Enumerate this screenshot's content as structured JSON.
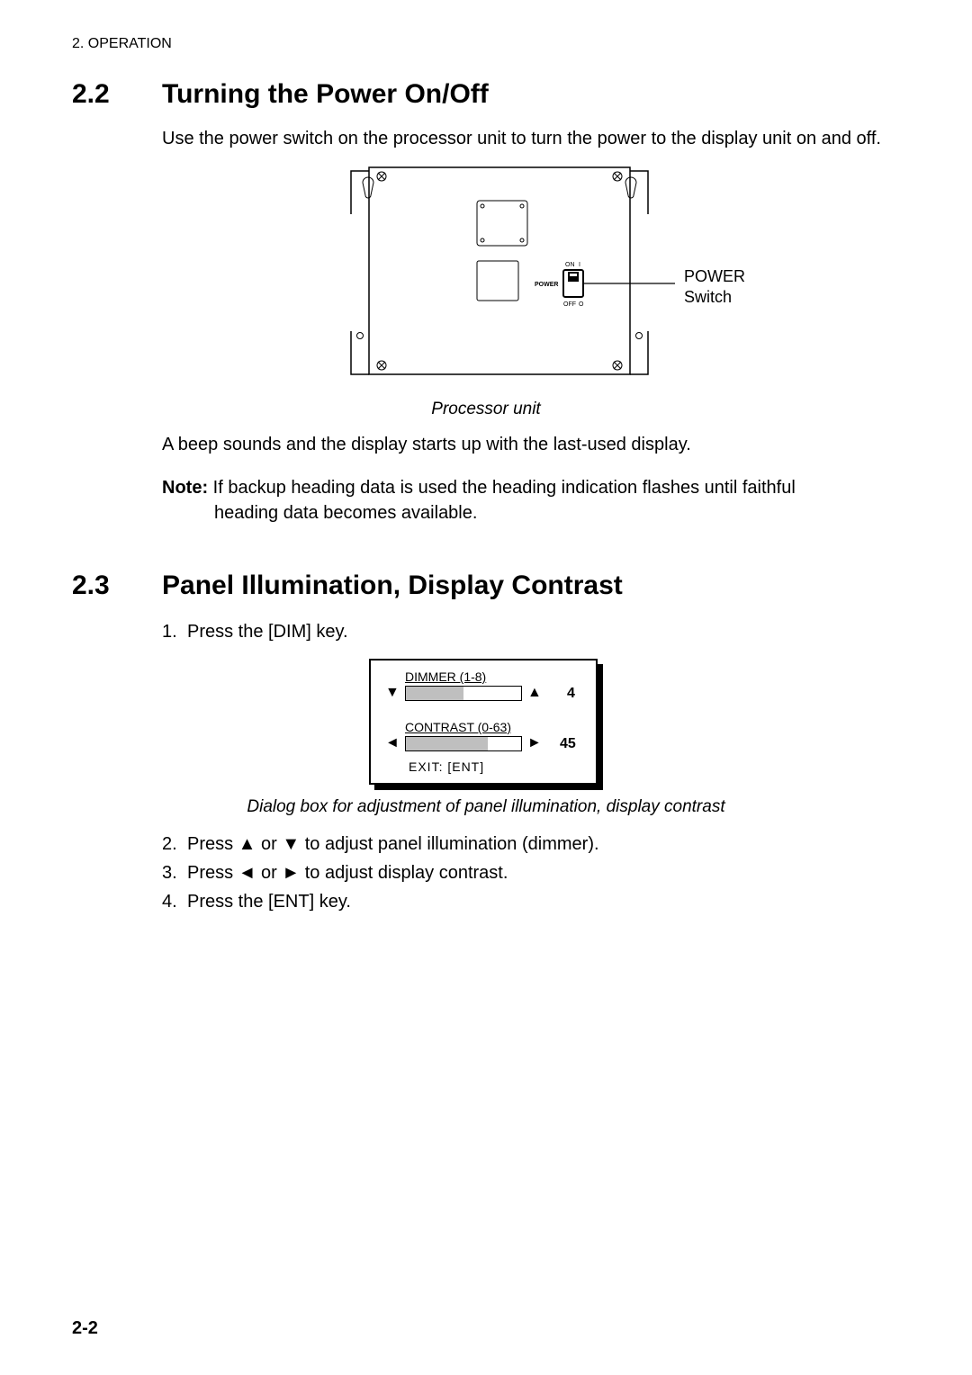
{
  "header": "2. OPERATION",
  "s22": {
    "num": "2.2",
    "title": "Turning the Power On/Off",
    "intro": "Use the power switch on the processor unit to turn the power to the display unit on and off.",
    "pu_label_line1": "POWER",
    "pu_label_line2": "Switch",
    "pu_caption": "Processor unit",
    "pu_switch_on": "ON",
    "pu_switch_on_mark": "I",
    "pu_switch_off": "OFF",
    "pu_switch_off_mark": "O",
    "pu_power_word": "POWER",
    "after": "A beep sounds and the display starts up with the last-used display.",
    "note_label": "Note:",
    "note_line1": "If backup heading data is used the heading indication flashes until faithful",
    "note_line2": "heading data becomes available."
  },
  "s23": {
    "num": "2.3",
    "title": "Panel Illumination, Display Contrast",
    "step1": "Press the [DIM] key.",
    "dimmer_label": "DIMMER   (1-8)",
    "dimmer_value": "4",
    "dimmer_fill_pct": 50,
    "contrast_label": "CONTRAST (0-63)",
    "contrast_value": "45",
    "contrast_fill_pct": 71,
    "exit_label": "EXIT: [ENT]",
    "dlg_caption": "Dialog box for adjustment of panel illumination, display contrast",
    "step2": "Press ▲ or ▼ to adjust panel illumination (dimmer).",
    "step3": "Press ◄ or ► to adjust display contrast.",
    "step4": "Press the [ENT] key."
  },
  "page_num": "2-2",
  "arrows": {
    "up": "▲",
    "down": "▼",
    "left": "◄",
    "right": "►"
  }
}
